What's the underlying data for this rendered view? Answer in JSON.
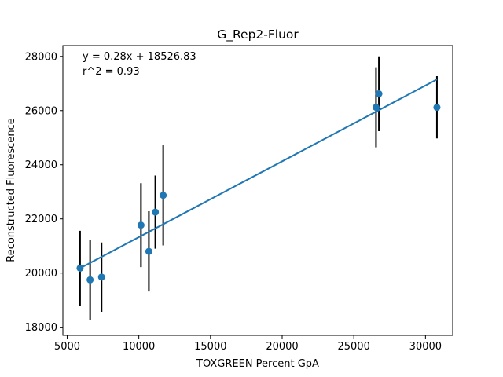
{
  "chart_data": {
    "type": "scatter",
    "title": "G_Rep2-Fluor",
    "xlabel": "TOXGREEN Percent GpA",
    "ylabel": "Reconstructed Fluorescence",
    "xlim": [
      4700,
      31900
    ],
    "ylim": [
      17700,
      28400
    ],
    "xticks": [
      5000,
      10000,
      15000,
      20000,
      25000,
      30000
    ],
    "yticks": [
      18000,
      20000,
      22000,
      24000,
      26000,
      28000
    ],
    "xtick_labels": [
      "5000",
      "10000",
      "15000",
      "20000",
      "25000",
      "30000"
    ],
    "ytick_labels": [
      "18000",
      "20000",
      "22000",
      "24000",
      "26000",
      "28000"
    ],
    "grid": false,
    "annotations": [
      "y = 0.28x + 18526.83",
      "r^2 = 0.93"
    ],
    "points": [
      {
        "x": 5900,
        "y": 20180,
        "err": 1380
      },
      {
        "x": 6600,
        "y": 19750,
        "err": 1480
      },
      {
        "x": 7400,
        "y": 19850,
        "err": 1280
      },
      {
        "x": 10150,
        "y": 21770,
        "err": 1550
      },
      {
        "x": 10700,
        "y": 20800,
        "err": 1480
      },
      {
        "x": 11150,
        "y": 22250,
        "err": 1350
      },
      {
        "x": 11700,
        "y": 22870,
        "err": 1850
      },
      {
        "x": 26550,
        "y": 26120,
        "err": 1480
      },
      {
        "x": 26750,
        "y": 26620,
        "err": 1380
      },
      {
        "x": 30800,
        "y": 26120,
        "err": 1150
      }
    ],
    "fit": {
      "slope": 0.28,
      "intercept": 18526.83,
      "r2": 0.93
    },
    "colors": {
      "marker": "#1f77b4",
      "fit_line": "#1f77b4",
      "errorbar": "#000000"
    }
  }
}
